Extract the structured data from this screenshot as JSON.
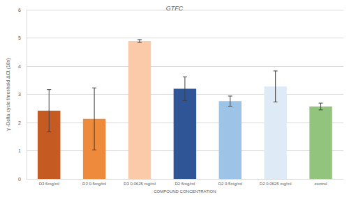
{
  "chart_data": {
    "type": "bar",
    "title": "GTFC",
    "x_label": "COMPOUND CONCENTRATION",
    "y_label": "γ -Delta cycle threshold ΔCt (18s)",
    "categories": [
      "D3 6mg/ml",
      "D3 0.5mg/ml",
      "D3 0.0625 mg/ml",
      "D2 6mg/ml",
      "D2 0.5mg/ml",
      "D2 0.0625 mg/ml",
      "control"
    ],
    "values": [
      2.42,
      2.13,
      4.89,
      3.2,
      2.76,
      3.28,
      2.57
    ],
    "errors": [
      0.75,
      1.1,
      0.05,
      0.42,
      0.18,
      0.55,
      0.12
    ],
    "colors": [
      "#c55a22",
      "#ee8a3c",
      "#fbcaa8",
      "#2f5597",
      "#9dc3e6",
      "#deebf7",
      "#93c47d"
    ],
    "ylim": [
      0,
      6
    ],
    "yticks": [
      0,
      1,
      2,
      3,
      4,
      5,
      6
    ],
    "grid": true
  }
}
